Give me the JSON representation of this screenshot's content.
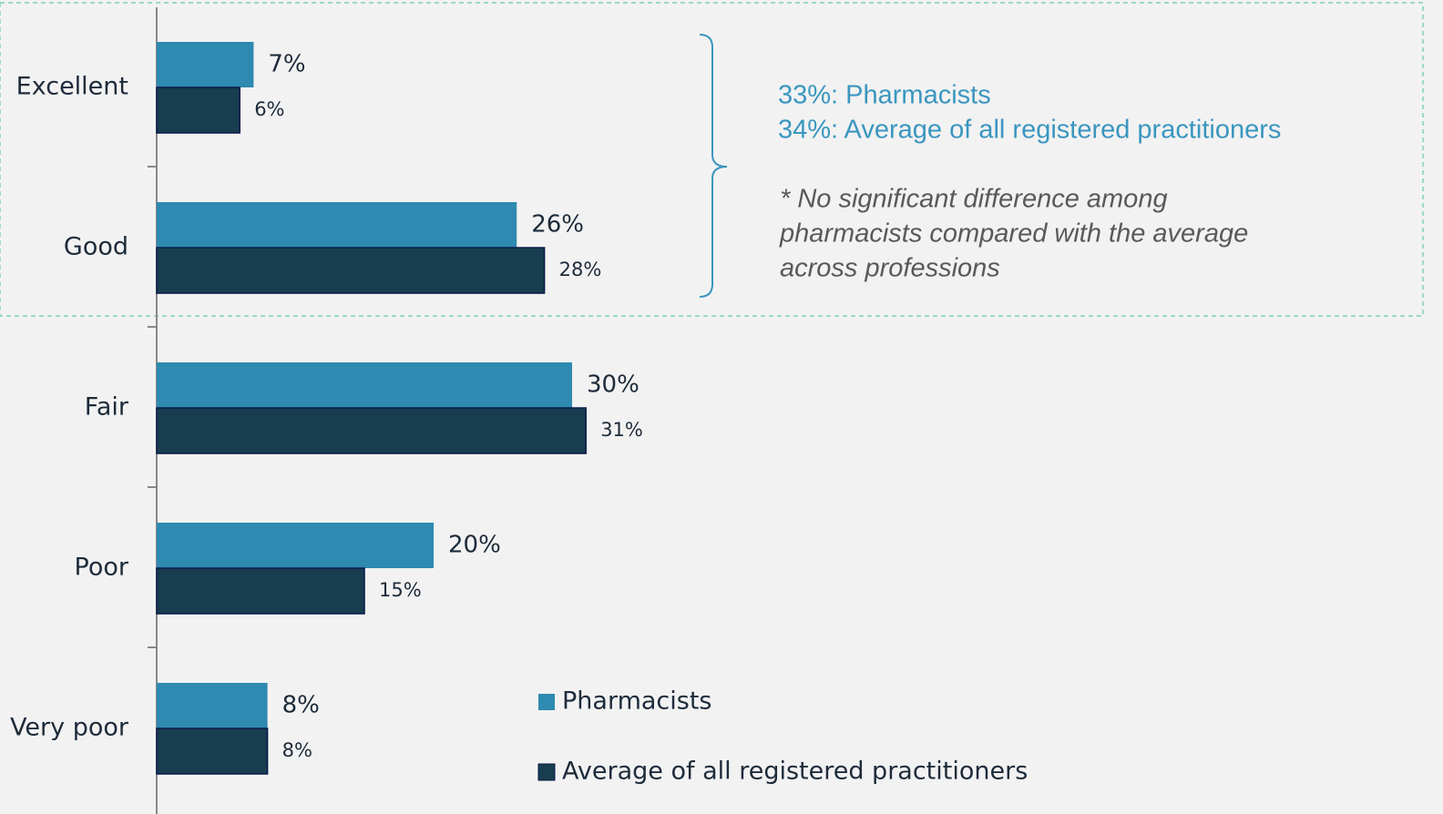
{
  "chart_data": {
    "type": "bar",
    "orientation": "horizontal",
    "categories": [
      "Excellent",
      "Good",
      "Fair",
      "Poor",
      "Very poor"
    ],
    "series": [
      {
        "name": "Pharmacists",
        "color": "#2e8ab0",
        "values": [
          7,
          26,
          30,
          20,
          8
        ],
        "value_labels": [
          "7%",
          "26%",
          "30%",
          "20%",
          "8%"
        ]
      },
      {
        "name": "Average of all registered practitioners",
        "color": "#173d4f",
        "values": [
          6,
          28,
          31,
          15,
          8
        ],
        "value_labels": [
          "6%",
          "28%",
          "31%",
          "15%",
          "8%"
        ]
      }
    ],
    "annotations": {
      "summary": [
        "33%: Pharmacists",
        "34%: Average of all registered practitioners"
      ],
      "note": [
        "*  No significant difference among",
        "pharmacists compared with the average",
        "across professions"
      ]
    }
  }
}
